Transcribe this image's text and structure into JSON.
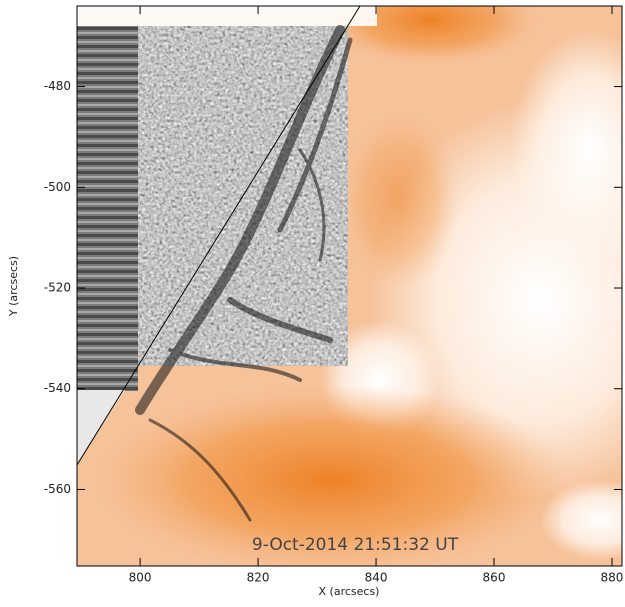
{
  "chart_data": {
    "type": "image",
    "annotation": "9-Oct-2014 21:51:32 UT",
    "x_label": "X (arcsecs)",
    "y_label": "Y (arcsecs)",
    "xlim": [
      789.3,
      881.7
    ],
    "ylim": [
      -575.2,
      -464.0
    ],
    "xticks": [
      800,
      820,
      840,
      860,
      880
    ],
    "yticks": [
      -480,
      -500,
      -520,
      -540,
      -560
    ]
  }
}
